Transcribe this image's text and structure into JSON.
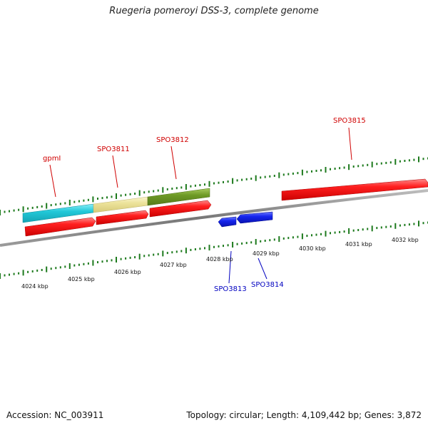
{
  "title": "Ruegeria pomeroyi DSS-3, complete genome",
  "footer": {
    "accession": "Accession: NC_003911",
    "summary": "Topology: circular; Length: 4,109,442 bp; Genes: 3,872"
  },
  "colors": {
    "forward_gene": "#ee1111",
    "reverse_gene": "#1122dd",
    "feature_cyan": "#22c8d8",
    "feature_yellow": "#ece29a",
    "feature_olive": "#6e9a26",
    "backbone": "#888888",
    "tick": "#1d7a1d",
    "label_forward": "#d00000",
    "label_reverse": "#0000c0"
  },
  "scale": {
    "ticks": [
      {
        "label": "4024 kbp"
      },
      {
        "label": "4025 kbp"
      },
      {
        "label": "4026 kbp"
      },
      {
        "label": "4027 kbp"
      },
      {
        "label": "4028 kbp"
      },
      {
        "label": "4029 kbp"
      },
      {
        "label": "4030 kbp"
      },
      {
        "label": "4031 kbp"
      },
      {
        "label": "4032 kbp"
      }
    ]
  },
  "genes": [
    {
      "name": "gpmI",
      "strand": "+"
    },
    {
      "name": "SPO3811",
      "strand": "+"
    },
    {
      "name": "SPO3812",
      "strand": "+"
    },
    {
      "name": "SPO3813",
      "strand": "-"
    },
    {
      "name": "SPO3814",
      "strand": "-"
    },
    {
      "name": "SPO3815",
      "strand": "+"
    }
  ]
}
